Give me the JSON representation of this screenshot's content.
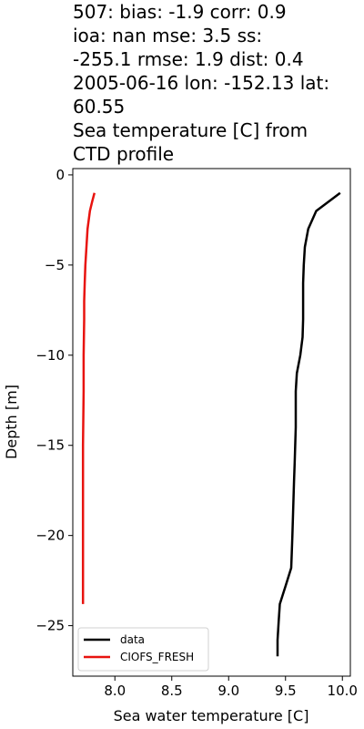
{
  "chart_data": {
    "type": "line",
    "title_lines": [
      "507: bias: -1.9  corr: 0.9",
      "ioa: nan  mse: 3.5  ss:",
      "-255.1  rmse: 1.9  dist: 0.4",
      "2005-06-16 lon: -152.13 lat:",
      "60.55",
      "Sea temperature [C] from",
      "CTD profile"
    ],
    "xlabel": "Sea water temperature [C]",
    "ylabel": "Depth [m]",
    "xlim": [
      7.63,
      10.07
    ],
    "ylim": [
      -27.8,
      0.35
    ],
    "xticks": [
      8.0,
      8.5,
      9.0,
      9.5,
      10.0
    ],
    "xtick_labels": [
      "8.0",
      "8.5",
      "9.0",
      "9.5",
      "10.0"
    ],
    "yticks": [
      0,
      -5,
      -10,
      -15,
      -20,
      -25
    ],
    "ytick_labels": [
      "0",
      "−5",
      "−10",
      "−15",
      "−20",
      "−25"
    ],
    "legend_position": "lower-left",
    "series": [
      {
        "name": "data",
        "color": "#000000",
        "points": [
          [
            9.98,
            -1.0
          ],
          [
            9.77,
            -2.0
          ],
          [
            9.7,
            -3.0
          ],
          [
            9.67,
            -4.0
          ],
          [
            9.66,
            -5.0
          ],
          [
            9.655,
            -6.0
          ],
          [
            9.655,
            -7.0
          ],
          [
            9.655,
            -8.0
          ],
          [
            9.65,
            -9.0
          ],
          [
            9.63,
            -10.0
          ],
          [
            9.6,
            -11.0
          ],
          [
            9.59,
            -12.0
          ],
          [
            9.59,
            -13.0
          ],
          [
            9.59,
            -14.0
          ],
          [
            9.585,
            -15.0
          ],
          [
            9.58,
            -16.0
          ],
          [
            9.575,
            -17.0
          ],
          [
            9.57,
            -18.0
          ],
          [
            9.565,
            -19.0
          ],
          [
            9.56,
            -20.0
          ],
          [
            9.555,
            -21.0
          ],
          [
            9.55,
            -21.8
          ],
          [
            9.5,
            -22.8
          ],
          [
            9.45,
            -23.8
          ],
          [
            9.44,
            -24.8
          ],
          [
            9.43,
            -25.8
          ],
          [
            9.43,
            -26.7
          ]
        ]
      },
      {
        "name": "CIOFS_FRESH",
        "color": "#e8130f",
        "points": [
          [
            7.82,
            -1.0
          ],
          [
            7.8,
            -1.5
          ],
          [
            7.78,
            -2.0
          ],
          [
            7.76,
            -3.0
          ],
          [
            7.75,
            -4.0
          ],
          [
            7.74,
            -5.0
          ],
          [
            7.735,
            -6.0
          ],
          [
            7.73,
            -7.0
          ],
          [
            7.73,
            -8.0
          ],
          [
            7.725,
            -10.0
          ],
          [
            7.725,
            -12.0
          ],
          [
            7.72,
            -15.0
          ],
          [
            7.72,
            -20.0
          ],
          [
            7.72,
            -23.8
          ]
        ]
      }
    ]
  }
}
